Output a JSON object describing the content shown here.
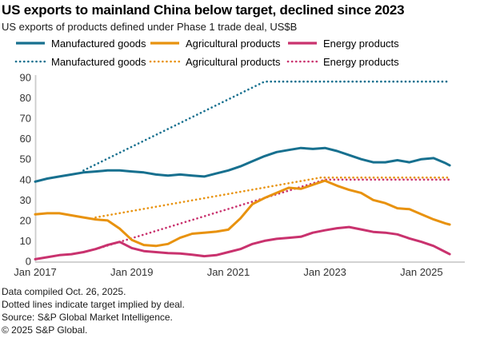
{
  "chart_data": {
    "type": "line",
    "title": "US exports to mainland China below target, declined since 2023",
    "subtitle": "US exports of products defined under Phase 1 trade deal, US$B",
    "x_unit": "months since Jan 2017",
    "ylim": [
      0,
      90
    ],
    "yticks": [
      0,
      10,
      20,
      30,
      40,
      50,
      60,
      70,
      80,
      90
    ],
    "xticks": [
      {
        "m": 0,
        "label": "Jan 2017"
      },
      {
        "m": 24,
        "label": "Jan 2019"
      },
      {
        "m": 48,
        "label": "Jan 2021"
      },
      {
        "m": 72,
        "label": "Jan 2023"
      },
      {
        "m": 96,
        "label": "Jan 2025"
      }
    ],
    "grid": false,
    "legend_position": "top",
    "colors": {
      "manufactured": "#17708F",
      "agricultural": "#E8920E",
      "energy": "#C9326E",
      "axis": "#cccccc",
      "tick_text": "#333333"
    },
    "series": [
      {
        "name": "Manufactured goods",
        "role": "actual",
        "style": "solid",
        "color": "#17708F",
        "x": [
          0,
          3,
          6,
          9,
          12,
          15,
          18,
          21,
          24,
          27,
          30,
          33,
          36,
          39,
          42,
          45,
          48,
          51,
          54,
          57,
          60,
          63,
          66,
          69,
          72,
          75,
          78,
          81,
          84,
          87,
          90,
          93,
          96,
          99,
          102,
          103
        ],
        "y": [
          39,
          40.5,
          41.5,
          42.5,
          43.5,
          44,
          44.5,
          44.5,
          44,
          43.5,
          42.5,
          42,
          42.5,
          42,
          41.5,
          43,
          44.5,
          46.5,
          49,
          51.5,
          53.5,
          54.5,
          55.5,
          55,
          55.5,
          54,
          52,
          50,
          48.5,
          48.5,
          49.5,
          48.5,
          50,
          50.5,
          48,
          47
        ]
      },
      {
        "name": "Agricultural products",
        "role": "actual",
        "style": "solid",
        "color": "#E8920E",
        "x": [
          0,
          3,
          6,
          9,
          12,
          15,
          18,
          21,
          24,
          27,
          30,
          33,
          36,
          39,
          42,
          45,
          48,
          51,
          54,
          57,
          60,
          63,
          66,
          69,
          72,
          75,
          78,
          81,
          84,
          87,
          90,
          93,
          96,
          99,
          102,
          103
        ],
        "y": [
          23,
          23.5,
          23.5,
          22.5,
          21.5,
          20.5,
          20,
          16,
          10.5,
          8,
          7.5,
          8.5,
          11.5,
          13.5,
          14,
          14.5,
          15.5,
          21,
          28,
          31,
          33.5,
          36,
          35.5,
          37.5,
          39.5,
          37,
          35,
          33.5,
          30,
          28.5,
          26,
          25.5,
          23,
          20.5,
          18.5,
          18
        ]
      },
      {
        "name": "Energy products",
        "role": "actual",
        "style": "solid",
        "color": "#C9326E",
        "x": [
          0,
          3,
          6,
          9,
          12,
          15,
          18,
          21,
          24,
          27,
          30,
          33,
          36,
          39,
          42,
          45,
          48,
          51,
          54,
          57,
          60,
          63,
          66,
          69,
          72,
          75,
          78,
          81,
          84,
          87,
          90,
          93,
          96,
          99,
          102,
          103
        ],
        "y": [
          1,
          2,
          3,
          3.5,
          4.5,
          6,
          8,
          9.5,
          6.5,
          5,
          4.5,
          4,
          3.8,
          3.2,
          2.5,
          3,
          4.5,
          6,
          8.5,
          10,
          11,
          11.5,
          12,
          14,
          15.2,
          16.2,
          16.8,
          15.6,
          14.4,
          14,
          13.2,
          11.2,
          9.5,
          7.5,
          4.5,
          3.5
        ]
      },
      {
        "name": "Manufactured goods",
        "role": "target",
        "style": "dotted",
        "color": "#17708F",
        "x": [
          12,
          57,
          103
        ],
        "y": [
          44.5,
          88,
          88
        ]
      },
      {
        "name": "Agricultural products",
        "role": "target",
        "style": "dotted",
        "color": "#E8920E",
        "x": [
          15,
          71,
          103
        ],
        "y": [
          21.5,
          41,
          41
        ]
      },
      {
        "name": "Energy products",
        "role": "target",
        "style": "dotted",
        "color": "#C9326E",
        "x": [
          16,
          72,
          103
        ],
        "y": [
          6.5,
          40,
          40
        ]
      }
    ]
  },
  "footer": {
    "lines": [
      "Data compiled Oct. 26, 2025.",
      "Dotted lines indicate target implied by deal.",
      "Source: S&P Global Market Intelligence.",
      "© 2025 S&P Global."
    ]
  }
}
